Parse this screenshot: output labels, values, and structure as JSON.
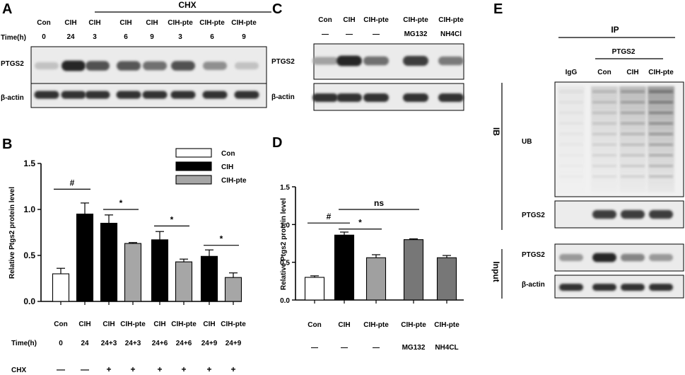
{
  "panels": {
    "A": {
      "letter": "A",
      "chx_label": "CHX",
      "time_label": "Time(h)",
      "lanes": [
        {
          "group": "Con",
          "time": "0"
        },
        {
          "group": "CIH",
          "time": "24"
        },
        {
          "group": "CIH",
          "time": "3"
        },
        {
          "group": "CIH",
          "time": "6"
        },
        {
          "group": "CIH",
          "time": "9"
        },
        {
          "group": "CIH-pte",
          "time": "3"
        },
        {
          "group": "CIH-pte",
          "time": "6"
        },
        {
          "group": "CIH-pte",
          "time": "9"
        }
      ],
      "rows": [
        {
          "label": "PTGS2",
          "intensity": [
            0.2,
            0.95,
            0.75,
            0.72,
            0.6,
            0.75,
            0.45,
            0.2
          ]
        },
        {
          "label": "β-actin",
          "intensity": [
            0.9,
            0.9,
            0.9,
            0.9,
            0.9,
            0.9,
            0.9,
            0.9
          ]
        }
      ]
    },
    "C": {
      "letter": "C",
      "lanes": [
        {
          "group": "Con",
          "treatment": "—"
        },
        {
          "group": "CIH",
          "treatment": "—"
        },
        {
          "group": "CIH-pte",
          "treatment": "—"
        },
        {
          "group": "CIH-pte",
          "treatment": "MG132"
        },
        {
          "group": "CIH-pte",
          "treatment": "NH4Cl"
        }
      ],
      "rows": [
        {
          "label": "PTGS2",
          "intensity": [
            0.35,
            0.95,
            0.6,
            0.85,
            0.55
          ]
        },
        {
          "label": "β-actin",
          "intensity": [
            0.9,
            0.9,
            0.9,
            0.9,
            0.9
          ]
        }
      ]
    },
    "E": {
      "letter": "E",
      "ip_label": "IP",
      "ptgs2_label": "PTGS2",
      "lanes": [
        "IgG",
        "Con",
        "CIH",
        "CIH-pte"
      ],
      "ib_label": "IB",
      "input_label": "Input",
      "rows": [
        {
          "label": "UB",
          "intensity": [
            0.1,
            0.35,
            0.55,
            0.85
          ]
        },
        {
          "label": "PTGS2",
          "intensity": [
            0.0,
            0.85,
            0.85,
            0.85
          ]
        },
        {
          "label": "PTGS2",
          "intensity": [
            0.4,
            0.95,
            0.5,
            0.4
          ]
        },
        {
          "label": "β-actin",
          "intensity": [
            0.9,
            0.9,
            0.9,
            0.9
          ]
        }
      ]
    },
    "B": {
      "letter": "B"
    },
    "D": {
      "letter": "D"
    }
  },
  "chart_data": [
    {
      "type": "bar",
      "panel": "B",
      "ylabel": "Relative Ptgs2 protein level",
      "ylim": [
        0,
        1.5
      ],
      "yticks": [
        "0.0",
        "0.5",
        "1.0",
        "1.5"
      ],
      "categories": [
        "Con",
        "CIH",
        "CIH",
        "CIH-pte",
        "CIH",
        "CIH-pte",
        "CIH",
        "CIH-pte"
      ],
      "time_label": "Time(h)",
      "times": [
        "0",
        "24",
        "24+3",
        "24+3",
        "24+6",
        "24+6",
        "24+9",
        "24+9"
      ],
      "chx_label": "CHX",
      "chx": [
        "—",
        "—",
        "+",
        "+",
        "+",
        "+",
        "+",
        "+"
      ],
      "values": [
        0.3,
        0.95,
        0.85,
        0.63,
        0.67,
        0.43,
        0.49,
        0.26
      ],
      "errors": [
        0.06,
        0.12,
        0.09,
        0.01,
        0.09,
        0.03,
        0.07,
        0.05
      ],
      "fills": [
        "#ffffff",
        "#000000",
        "#000000",
        "#a6a6a6",
        "#000000",
        "#a6a6a6",
        "#000000",
        "#a6a6a6"
      ],
      "legend": [
        {
          "name": "Con",
          "color": "#ffffff"
        },
        {
          "name": "CIH",
          "color": "#000000"
        },
        {
          "name": "CIH-pte",
          "color": "#a6a6a6"
        }
      ],
      "significance": [
        {
          "from": 0,
          "to": 1,
          "label": "#",
          "y": 1.22
        },
        {
          "from": 2,
          "to": 3,
          "label": "*",
          "y": 1.0
        },
        {
          "from": 4,
          "to": 5,
          "label": "*",
          "y": 0.82
        },
        {
          "from": 6,
          "to": 7,
          "label": "*",
          "y": 0.61
        }
      ]
    },
    {
      "type": "bar",
      "panel": "D",
      "ylabel": "Relative Ptgs2 protein level",
      "ylim": [
        0,
        1.5
      ],
      "yticks": [
        "0.0",
        "0.5",
        "1.0",
        "1.5"
      ],
      "categories": [
        "Con",
        "CIH",
        "CIH-pte",
        "CIH-pte",
        "CIH-pte"
      ],
      "treatments": [
        "—",
        "—",
        "—",
        "MG132",
        "NH4CL"
      ],
      "values": [
        0.3,
        0.86,
        0.56,
        0.8,
        0.56
      ],
      "errors": [
        0.02,
        0.04,
        0.04,
        0.01,
        0.03
      ],
      "fills": [
        "#ffffff",
        "#000000",
        "#a0a0a0",
        "#777777",
        "#777777"
      ],
      "significance": [
        {
          "from": 0,
          "to": 1,
          "label": "#",
          "y": 1.02
        },
        {
          "from": 1,
          "to": 2,
          "label": "*",
          "y": 0.94
        },
        {
          "from": 1,
          "to": 3,
          "label": "ns",
          "y": 1.2
        }
      ]
    }
  ]
}
